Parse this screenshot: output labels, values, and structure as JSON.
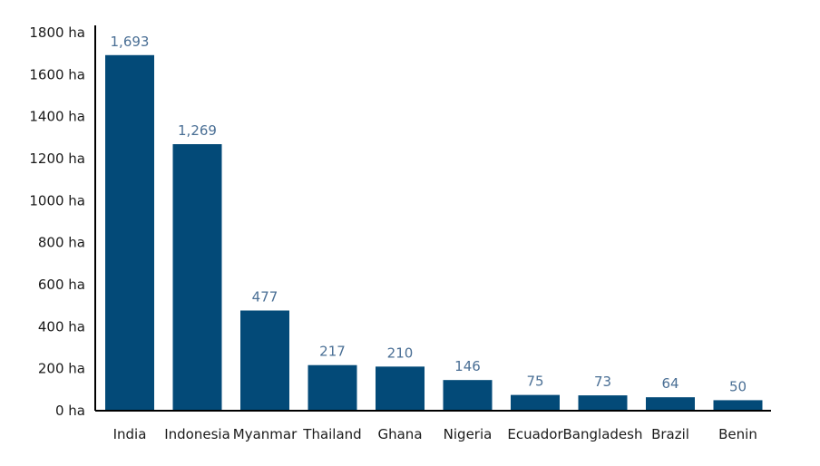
{
  "chart_data": {
    "type": "bar",
    "categories": [
      "India",
      "Indonesia",
      "Myanmar",
      "Thailand",
      "Ghana",
      "Nigeria",
      "Ecuador",
      "Bangladesh",
      "Brazil",
      "Benin"
    ],
    "values": [
      1693,
      1269,
      477,
      217,
      210,
      146,
      75,
      73,
      64,
      50
    ],
    "data_labels": [
      "1,693",
      "1,269",
      "477",
      "217",
      "210",
      "146",
      "75",
      "73",
      "64",
      "50"
    ],
    "y_ticks": [
      0,
      200,
      400,
      600,
      800,
      1000,
      1200,
      1400,
      1600,
      1800
    ],
    "y_tick_labels": [
      "0 ha",
      "200 ha",
      "400 ha",
      "600 ha",
      "800 ha",
      "1000 ha",
      "1200 ha",
      "1400 ha",
      "1600 ha",
      "1800 ha"
    ],
    "ylim": [
      0,
      1800
    ],
    "grid": false,
    "bar_color": "#034a78",
    "label_color": "#4a6f95"
  }
}
